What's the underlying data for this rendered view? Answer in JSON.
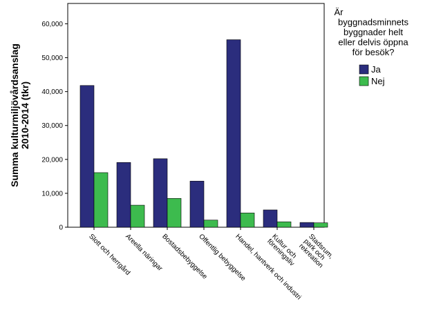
{
  "chart_data": {
    "type": "bar",
    "ylabel_lines": [
      "Summa kulturmiljövårdsanslag",
      "2010-2014 (tkr)"
    ],
    "xlabel": "",
    "ylim": [
      0,
      66000
    ],
    "yticks": [
      0,
      10000,
      20000,
      30000,
      40000,
      50000,
      60000
    ],
    "ytick_labels": [
      "0",
      "10,000",
      "20,000",
      "30,000",
      "40,000",
      "50,000",
      "60,000"
    ],
    "categories": [
      [
        "Slott och herrgård"
      ],
      [
        "Areella näringar"
      ],
      [
        "Bostadsbebyggelse"
      ],
      [
        "Offentlig bebyggelse"
      ],
      [
        "Handel, hantverk och industri"
      ],
      [
        "Kultur och",
        "föreningsliv"
      ],
      [
        "Stadsrum,",
        "park och",
        "rekreation"
      ]
    ],
    "series": [
      {
        "name": "Ja",
        "color": "#2b2d7d",
        "values": [
          41800,
          19100,
          20200,
          13600,
          55300,
          5100,
          1400
        ]
      },
      {
        "name": "Nej",
        "color": "#3dbb4e",
        "values": [
          16100,
          6500,
          8500,
          2100,
          4200,
          1600,
          1300
        ]
      }
    ],
    "legend": {
      "title_lines": [
        "Är",
        "byggnadsminnets",
        "byggnader helt",
        "eller delvis öppna",
        "för besök?"
      ],
      "placement": "right"
    },
    "grid": false
  }
}
